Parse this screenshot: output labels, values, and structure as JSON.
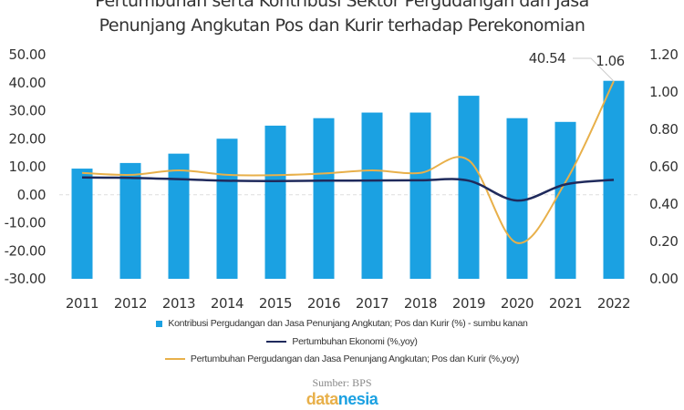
{
  "chart_data": {
    "type": "bar+line",
    "title_line1": "Pertumbuhan serta Kontribusi Sektor Pergudangan dan Jasa",
    "title_line2": "Penunjang Angkutan Pos dan Kurir terhadap Perekonomian",
    "categories": [
      "2011",
      "2012",
      "2013",
      "2014",
      "2015",
      "2016",
      "2017",
      "2018",
      "2019",
      "2020",
      "2021",
      "2022"
    ],
    "left_axis": {
      "ylim": [
        -30,
        50
      ],
      "ticks": [
        "50.00",
        "40.00",
        "30.00",
        "20.00",
        "10.00",
        "0.00",
        "-10.00",
        "-20.00",
        "-30.00"
      ]
    },
    "right_axis": {
      "ylim": [
        0,
        1.2
      ],
      "ticks": [
        "1.20",
        "1.00",
        "0.80",
        "0.60",
        "0.40",
        "0.20",
        "0.00"
      ]
    },
    "series": [
      {
        "name": "Kontribusi Pergudangan dan Jasa Penunjang Angkutan; Pos dan Kurir (%) - sumbu kanan",
        "type": "bar",
        "axis": "right",
        "color": "#1BA1E2",
        "values": [
          0.59,
          0.62,
          0.67,
          0.75,
          0.82,
          0.86,
          0.89,
          0.89,
          0.98,
          0.86,
          0.84,
          1.06
        ]
      },
      {
        "name": "Pertumbuhan Ekonomi (%,yoy)",
        "type": "line",
        "axis": "left",
        "color": "#1F2A5C",
        "values": [
          6.17,
          6.03,
          5.56,
          5.01,
          4.88,
          5.03,
          5.07,
          5.17,
          5.02,
          -2.07,
          3.7,
          5.31
        ]
      },
      {
        "name": "Pertumbuhan Pergudangan dan Jasa Penunjang Angkutan; Pos dan Kurir (%,yoy)",
        "type": "line",
        "axis": "left",
        "color": "#E8B04A",
        "values": [
          7.8,
          7.1,
          8.7,
          7.1,
          7.0,
          7.6,
          8.7,
          7.8,
          12.3,
          -17.2,
          4.5,
          40.54
        ]
      }
    ],
    "annotations": [
      "40.54",
      "1.06"
    ],
    "grid": false,
    "legend_position": "bottom"
  },
  "source": "Sumber: BPS",
  "logo": {
    "part1": "data",
    "part2": "nesia",
    "color1": "#E8B04A",
    "color2": "#1BA1E2"
  }
}
